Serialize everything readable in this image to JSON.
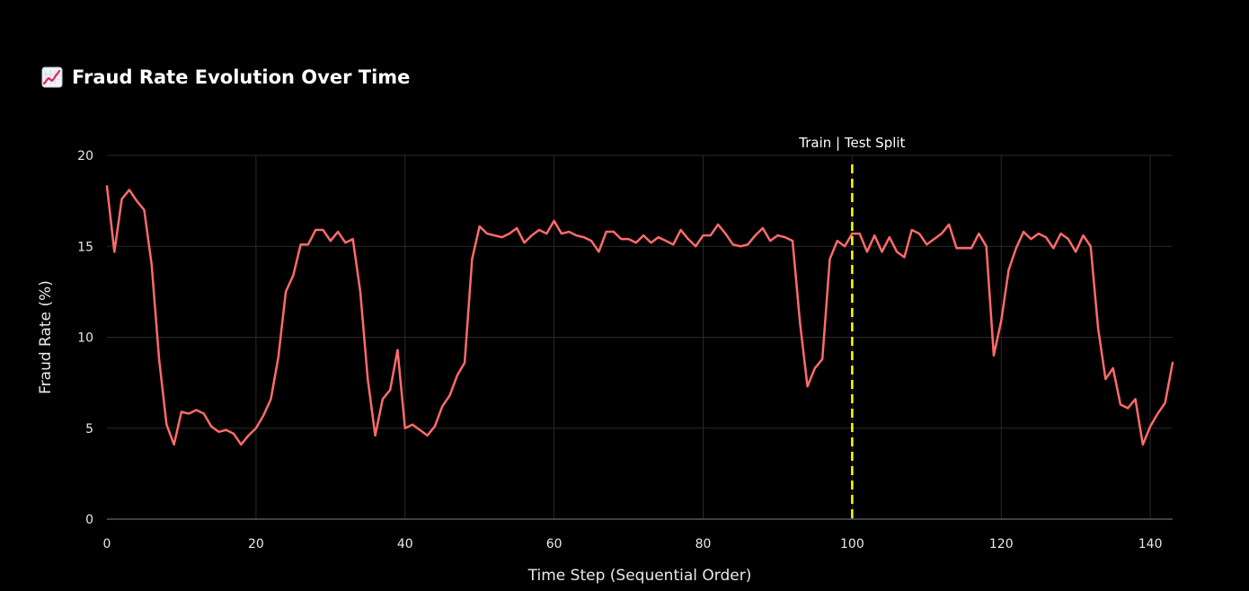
{
  "header": {
    "icon": "chart-increasing-icon",
    "title": "Fraud Rate Evolution Over Time"
  },
  "chart_data": {
    "type": "line",
    "title": "Fraud Rate Evolution Over Time",
    "xlabel": "Time Step (Sequential Order)",
    "ylabel": "Fraud Rate (%)",
    "xlim": [
      0,
      143
    ],
    "ylim": [
      0,
      20
    ],
    "xticks": [
      0,
      20,
      40,
      60,
      80,
      100,
      120,
      140
    ],
    "yticks": [
      0,
      5,
      10,
      15,
      20
    ],
    "grid": true,
    "colors": {
      "line": "#ff6b6b",
      "split_line": "#ffff00",
      "grid": "#2a2a2a",
      "axis": "#555566"
    },
    "annotation": {
      "x": 100,
      "label": "Train | Test Split"
    },
    "series": [
      {
        "values": [
          18.3,
          14.7,
          17.6,
          18.1,
          17.5,
          17.0,
          14.0,
          8.8,
          5.2,
          4.1,
          5.9,
          5.8,
          6.0,
          5.8,
          5.1,
          4.8,
          4.9,
          4.7,
          4.1,
          4.6,
          5.0,
          5.7,
          6.6,
          8.9,
          12.5,
          13.4,
          15.1,
          15.1,
          15.9,
          15.9,
          15.3,
          15.8,
          15.2,
          15.4,
          12.5,
          7.7,
          4.6,
          6.6,
          7.1,
          9.3,
          5.0,
          5.2,
          4.9,
          4.6,
          5.1,
          6.2,
          6.8,
          7.9,
          8.6,
          14.3,
          16.1,
          15.7,
          15.6,
          15.5,
          15.7,
          16.0,
          15.2,
          15.6,
          15.9,
          15.7,
          16.4,
          15.7,
          15.8,
          15.6,
          15.5,
          15.3,
          14.7,
          15.8,
          15.8,
          15.4,
          15.4,
          15.2,
          15.6,
          15.2,
          15.5,
          15.3,
          15.1,
          15.9,
          15.4,
          15.0,
          15.6,
          15.6,
          16.2,
          15.7,
          15.1,
          15.0,
          15.1,
          15.6,
          16.0,
          15.3,
          15.6,
          15.5,
          15.3,
          10.8,
          7.3,
          8.3,
          8.8,
          14.3,
          15.3,
          15.0,
          15.7,
          15.7,
          14.7,
          15.6,
          14.7,
          15.5,
          14.7,
          14.4,
          15.9,
          15.7,
          15.1,
          15.4,
          15.7,
          16.2,
          14.9,
          14.9,
          14.9,
          15.7,
          15.0,
          9.0,
          10.9,
          13.7,
          14.9,
          15.8,
          15.4,
          15.7,
          15.5,
          14.9,
          15.7,
          15.4,
          14.7,
          15.6,
          15.0,
          10.5,
          7.7,
          8.3,
          6.3,
          6.1,
          6.6,
          4.1,
          5.1,
          5.8,
          6.4,
          8.6
        ]
      }
    ]
  }
}
